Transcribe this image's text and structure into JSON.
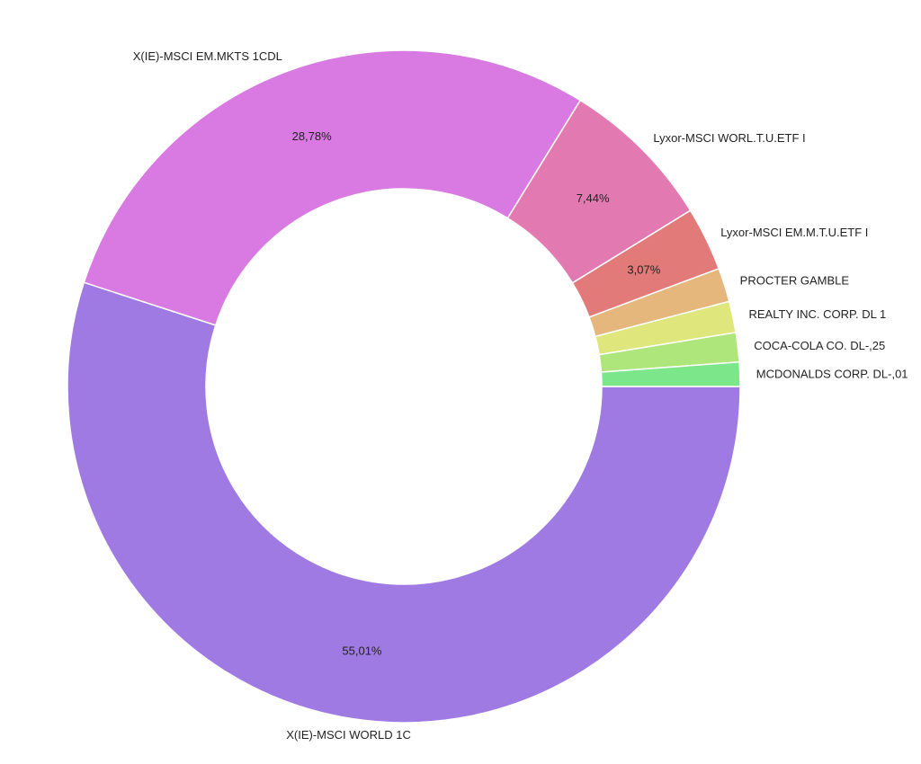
{
  "chart_data": {
    "type": "pie",
    "style": "donut",
    "slices": [
      {
        "label": "X(IE)-MSCI WORLD 1C",
        "value": 55.01,
        "value_label": "55,01%",
        "color": "#9f7ae2"
      },
      {
        "label": "X(IE)-MSCI EM.MKTS 1CDL",
        "value": 28.78,
        "value_label": "28,78%",
        "color": "#d87ae2"
      },
      {
        "label": "Lyxor-MSCI WORL.T.U.ETF I",
        "value": 7.44,
        "value_label": "7,44%",
        "color": "#e27ab1"
      },
      {
        "label": "Lyxor-MSCI EM.M.T.U.ETF I",
        "value": 3.07,
        "value_label": "3,07%",
        "color": "#e27a7a"
      },
      {
        "label": "PROCTER GAMBLE",
        "value": 1.63,
        "value_label": "",
        "color": "#e6b77c"
      },
      {
        "label": "REALTY INC. CORP. DL 1",
        "value": 1.5,
        "value_label": "",
        "color": "#dfe67c"
      },
      {
        "label": "COCA-COLA CO. DL-,25",
        "value": 1.41,
        "value_label": "",
        "color": "#aee67c"
      },
      {
        "label": "MCDONALDS CORP. DL-,01",
        "value": 1.16,
        "value_label": "",
        "color": "#7ce68a"
      }
    ]
  }
}
